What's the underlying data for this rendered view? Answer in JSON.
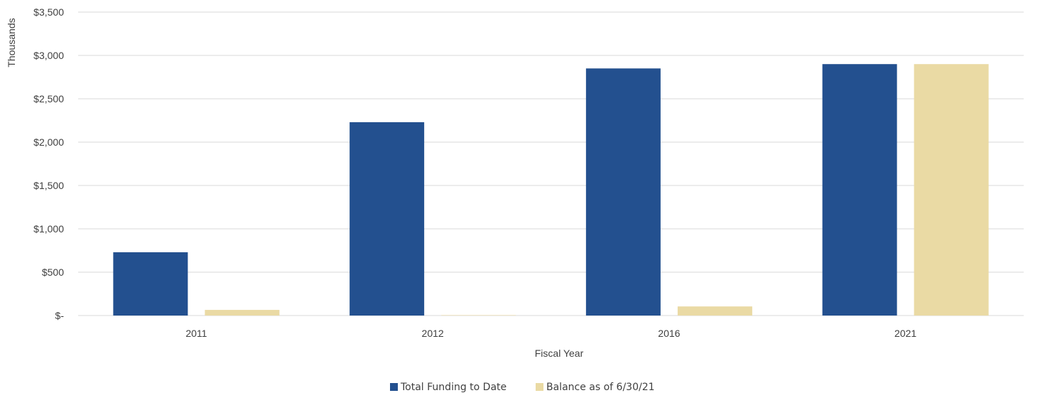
{
  "chart_data": {
    "type": "bar",
    "title": "",
    "xlabel": "Fiscal Year",
    "ylabel": "Thousands",
    "categories": [
      "2011",
      "2012",
      "2016",
      "2021"
    ],
    "series": [
      {
        "name": "Total Funding to Date",
        "color": "#23508f",
        "values": [
          730,
          2230,
          2850,
          2900
        ]
      },
      {
        "name": "Balance as of 6/30/21",
        "color": "#eadaa4",
        "values": [
          65,
          5,
          105,
          2900
        ]
      }
    ],
    "ylim": [
      0,
      3500
    ],
    "y_ticks": [
      0,
      500,
      1000,
      1500,
      2000,
      2500,
      3000,
      3500
    ],
    "y_tick_labels": [
      "$-",
      "$500",
      "$1,000",
      "$1,500",
      "$2,000",
      "$2,500",
      "$3,000",
      "$3,500"
    ],
    "grid": true,
    "legend_position": "bottom"
  }
}
